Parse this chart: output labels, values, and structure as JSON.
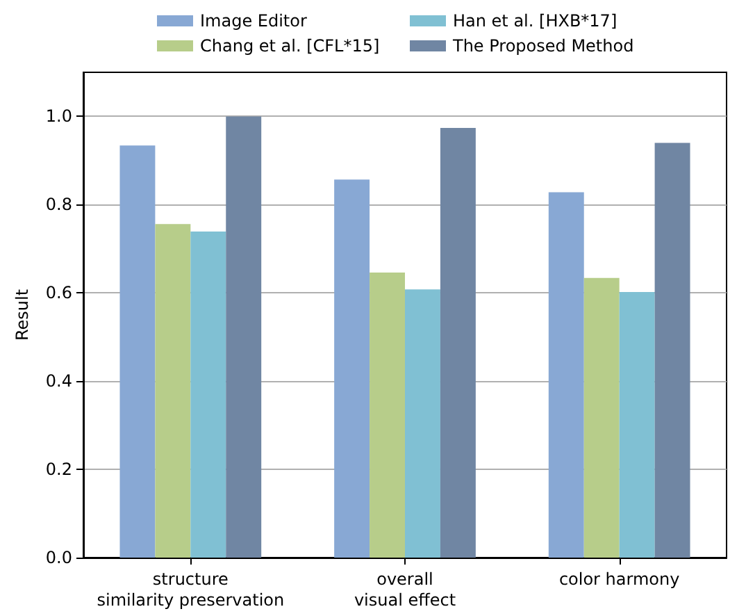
{
  "chart_data": {
    "type": "bar",
    "ylabel": "Result",
    "categories": [
      "structure\nsimilarity preservation",
      "overall\nvisual effect",
      "color harmony"
    ],
    "series": [
      {
        "name": "Image Editor",
        "color": "#88a8d4",
        "values": [
          0.934,
          0.857,
          0.828
        ]
      },
      {
        "name": "Chang et al. [CFL*15]",
        "color": "#b7cd8a",
        "values": [
          0.756,
          0.646,
          0.634
        ]
      },
      {
        "name": "Han et al. [HXB*17]",
        "color": "#80c0d3",
        "values": [
          0.739,
          0.608,
          0.602
        ]
      },
      {
        "name": "The Proposed Method",
        "color": "#7086a3",
        "values": [
          1.0,
          0.974,
          0.94
        ]
      }
    ],
    "ylim": [
      0,
      1.1
    ],
    "yticks": [
      {
        "value": 0,
        "label": "0.0"
      },
      0.2,
      0.4,
      0.6,
      0.8,
      {
        "value": 1,
        "label": "1.0"
      }
    ],
    "grid": "y",
    "legend": "top"
  }
}
